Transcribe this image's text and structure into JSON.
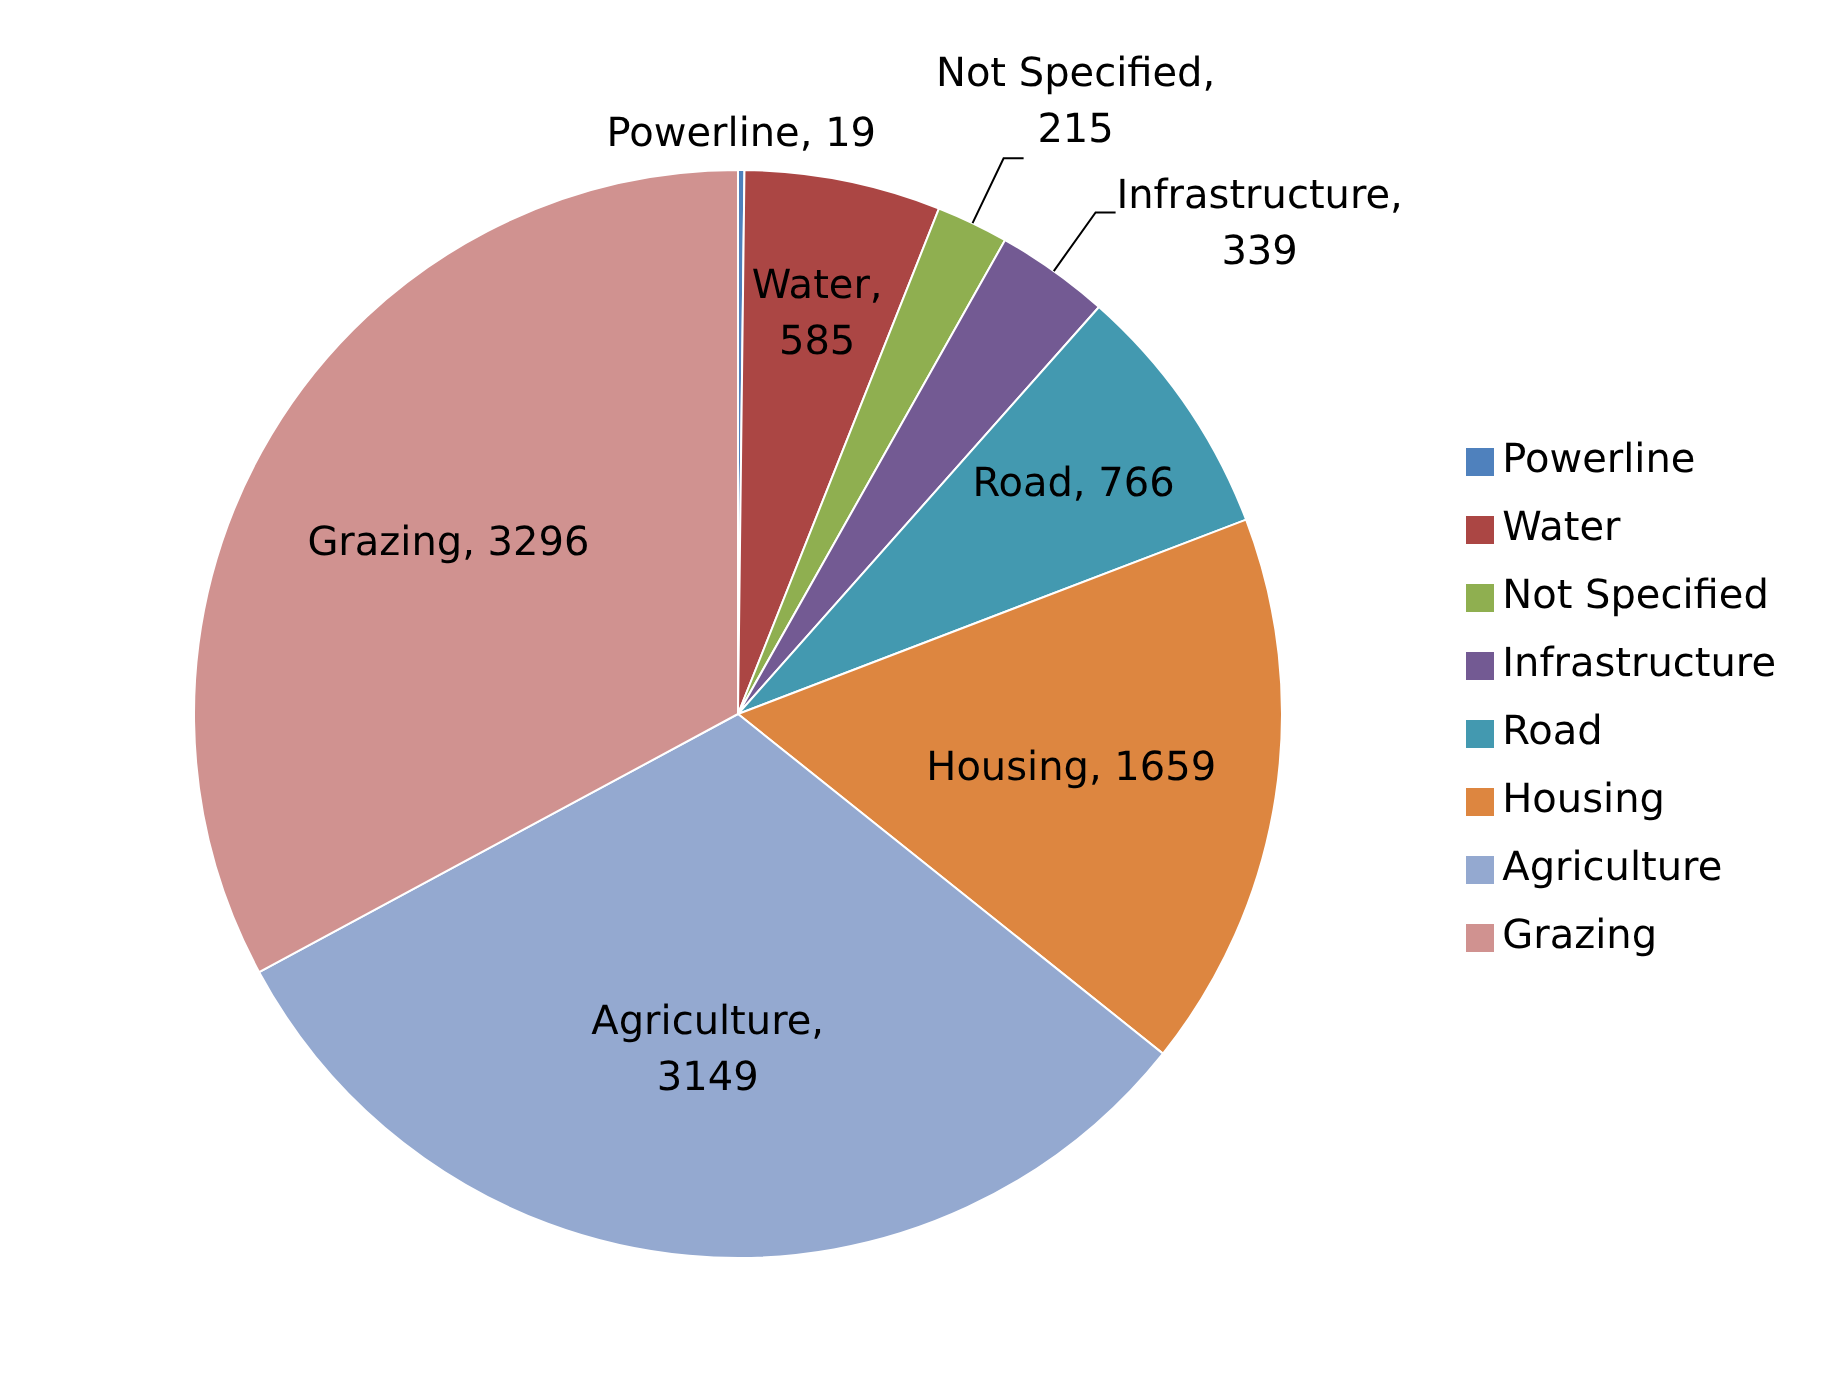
{
  "chart_data": {
    "type": "pie",
    "categories": [
      "Powerline",
      "Water",
      "Not Specified",
      "Infrastructure",
      "Road",
      "Housing",
      "Agriculture",
      "Grazing"
    ],
    "values": [
      19,
      585,
      215,
      339,
      766,
      1659,
      3149,
      3296
    ],
    "colors": [
      "#4f81bd",
      "#ab4644",
      "#8faf50",
      "#735a93",
      "#4399b0",
      "#dd8640",
      "#94a9d0",
      "#d09290"
    ],
    "value_labels": [
      "Powerline, 19",
      "Water, 585",
      "Not Specified, 215",
      "Infrastructure, 339",
      "Road, 766",
      "Housing, 1659",
      "Agriculture, 3149",
      "Grazing, 3296"
    ],
    "legend": "right"
  }
}
